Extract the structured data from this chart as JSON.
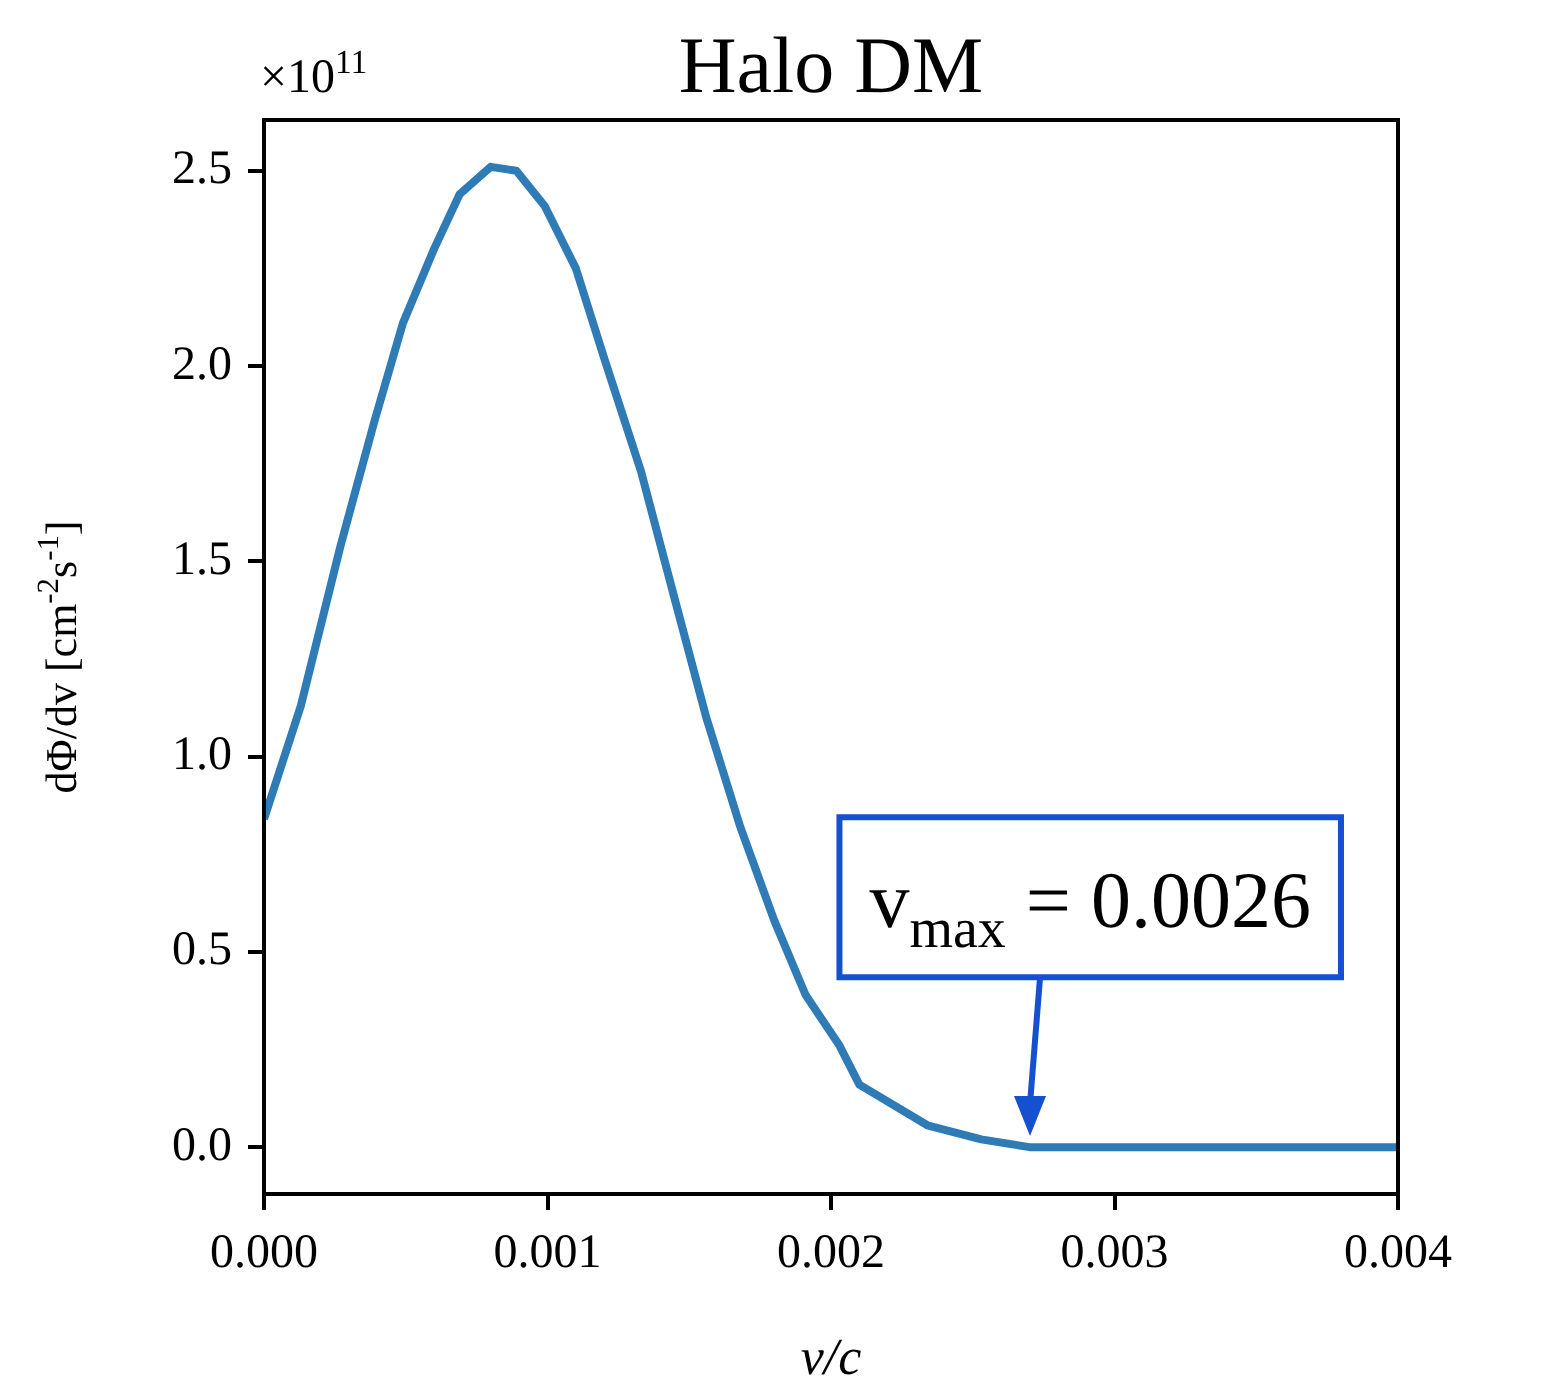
{
  "chart_data": {
    "type": "line",
    "title": "Halo DM",
    "xlabel": "v/c",
    "ylabel": "dΦ/dv [cm$^{-2}$s$^{-1}$]",
    "annotations": [
      "×10$^{11}$",
      {
        "text": "v$_{max}$ = 0.0026",
        "x": 0.0027,
        "y": 0
      }
    ],
    "x": [
      0,
      0.00013,
      0.00027,
      0.00039,
      0.00049,
      0.0006,
      0.00069,
      0.0008,
      0.00089,
      0.00099,
      0.0011,
      0.0012,
      0.00133,
      0.00145,
      0.00156,
      0.00168,
      0.0018,
      0.00191,
      0.00203,
      0.0021,
      0.00234,
      0.00253,
      0.0027,
      0.003,
      0.0035,
      0.004
    ],
    "series": [
      {
        "color": "#2f7bb6",
        "values": [
          0.84,
          1.13,
          1.54,
          1.86,
          2.11,
          2.3,
          2.44,
          2.51,
          2.5,
          2.41,
          2.25,
          2.02,
          1.73,
          1.4,
          1.1,
          0.82,
          0.58,
          0.39,
          0.26,
          0.16,
          0.056,
          0.02,
          0,
          0,
          0,
          0
        ]
      }
    ],
    "xlim": [
      0,
      0.004
    ],
    "ylim": [
      -0.12,
      2.63
    ],
    "xticks": [
      {
        "value": 0,
        "label": "0.000"
      },
      {
        "value": 0.001,
        "label": "0.001"
      },
      {
        "value": 0.002,
        "label": "0.002"
      },
      {
        "value": 0.003,
        "label": "0.003"
      },
      {
        "value": 0.004,
        "label": "0.004"
      }
    ],
    "yticks": [
      {
        "value": 0,
        "label": "0.0"
      },
      {
        "value": 0.5,
        "label": "0.5"
      },
      {
        "value": 1,
        "label": "1.0"
      },
      {
        "value": 1.5,
        "label": "1.5"
      },
      {
        "value": 2,
        "label": "2.0"
      },
      {
        "value": 2.5,
        "label": "2.5"
      }
    ],
    "marker": "none"
  }
}
